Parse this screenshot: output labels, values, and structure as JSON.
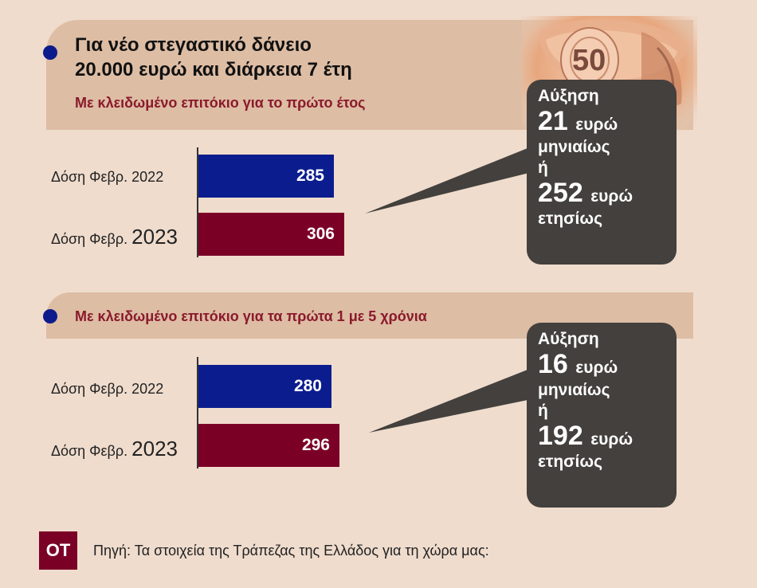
{
  "header": {
    "title_line1": "Για νέο στεγαστικό δάνειο",
    "title_line2": "20.000 ευρώ και διάρκεια 7 έτη"
  },
  "chart_data": [
    {
      "type": "bar",
      "orientation": "horizontal",
      "subtitle": "Με κλειδωμένο επιτόκιο για το πρώτο έτος",
      "categories": [
        {
          "prefix": "Δόση Φεβρ.",
          "year": "2022"
        },
        {
          "prefix": "Δόση Φεβρ.",
          "year": "2023"
        }
      ],
      "values": [
        285,
        306
      ],
      "bar_colors": [
        "#0b1d8e",
        "#7b0026"
      ],
      "callout": {
        "line1": "Αύξηση",
        "line2_num": "21",
        "line2_unit": "ευρώ",
        "line3": "μηνιαίως",
        "line4": "ή",
        "line5_num": "252",
        "line5_unit": "ευρώ",
        "line6": "ετησίως"
      }
    },
    {
      "type": "bar",
      "orientation": "horizontal",
      "subtitle": "Με κλειδωμένο επιτόκιο για τα πρώτα 1 με 5 χρόνια",
      "categories": [
        {
          "prefix": "Δόση Φεβρ.",
          "year": "2022"
        },
        {
          "prefix": "Δόση Φεβρ.",
          "year": "2023"
        }
      ],
      "values": [
        280,
        296
      ],
      "bar_colors": [
        "#0b1d8e",
        "#7b0026"
      ],
      "callout": {
        "line1": "Αύξηση",
        "line2_num": "16",
        "line2_unit": "ευρώ",
        "line3": "μηνιαίως",
        "line4": "ή",
        "line5_num": "192",
        "line5_unit": "ευρώ",
        "line6": "ετησίως"
      }
    }
  ],
  "footer": {
    "logo": "ΟΤ",
    "source": "Πηγή: Τα στοιχεία της Τράπεζας της Ελλάδος για τη χώρα μας:"
  },
  "decor": {
    "banknote_text": "50",
    "icon": "banknote-roll-icon"
  }
}
